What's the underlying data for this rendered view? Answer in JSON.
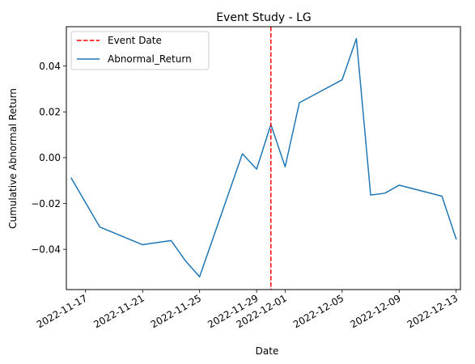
{
  "chart_data": {
    "type": "line",
    "title": "Event Study - LG",
    "xlabel": "Date",
    "ylabel": "Cumulative Abnormal Return",
    "x_tick_labels": [
      "2022-11-17",
      "2022-11-21",
      "2022-11-25",
      "2022-11-29",
      "2022-12-01",
      "2022-12-05",
      "2022-12-09",
      "2022-12-13"
    ],
    "x_tick_dates": [
      "2022-11-17",
      "2022-11-21",
      "2022-11-25",
      "2022-11-29",
      "2022-12-01",
      "2022-12-05",
      "2022-12-09",
      "2022-12-13"
    ],
    "y_tick_labels": [
      "−0.04",
      "−0.02",
      "0.00",
      "0.02",
      "0.04"
    ],
    "y_tick_values": [
      -0.04,
      -0.02,
      0.0,
      0.02,
      0.04
    ],
    "xlim": [
      "2022-11-15",
      "2022-12-13"
    ],
    "ylim": [
      -0.0576,
      0.0572
    ],
    "grid": false,
    "legend_position": "top-left",
    "event_line": {
      "name": "Event Date",
      "x": "2022-11-30",
      "color": "#ff0000",
      "style": "dashed"
    },
    "series": [
      {
        "name": "Abnormal_Return",
        "color": "#1f77b4",
        "points": [
          {
            "x": "2022-11-16",
            "y": -0.009
          },
          {
            "x": "2022-11-18",
            "y": -0.0303
          },
          {
            "x": "2022-11-21",
            "y": -0.038
          },
          {
            "x": "2022-11-23",
            "y": -0.0362
          },
          {
            "x": "2022-11-24",
            "y": -0.045
          },
          {
            "x": "2022-11-25",
            "y": -0.052
          },
          {
            "x": "2022-11-28",
            "y": 0.0017
          },
          {
            "x": "2022-11-29",
            "y": -0.005
          },
          {
            "x": "2022-11-30",
            "y": 0.0145
          },
          {
            "x": "2022-12-01",
            "y": -0.004
          },
          {
            "x": "2022-12-02",
            "y": 0.024
          },
          {
            "x": "2022-12-05",
            "y": 0.034
          },
          {
            "x": "2022-12-06",
            "y": 0.052
          },
          {
            "x": "2022-12-07",
            "y": -0.0163
          },
          {
            "x": "2022-12-08",
            "y": -0.0155
          },
          {
            "x": "2022-12-09",
            "y": -0.012
          },
          {
            "x": "2022-12-12",
            "y": -0.0168
          },
          {
            "x": "2022-12-13",
            "y": -0.0355
          }
        ]
      }
    ]
  }
}
